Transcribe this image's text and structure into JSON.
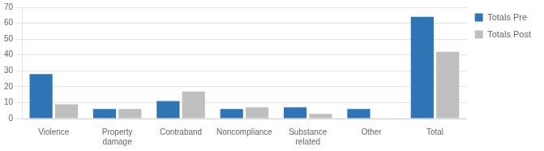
{
  "chart_data": {
    "type": "bar",
    "categories": [
      "Violence",
      "Property\ndamage",
      "Contraband",
      "Noncompliance",
      "Substance\nrelated",
      "Other",
      "Total"
    ],
    "series": [
      {
        "name": "Totals Pre",
        "color": "#2E75B6",
        "values": [
          28,
          6,
          11,
          6,
          7,
          6,
          64
        ]
      },
      {
        "name": "Totals Post",
        "color": "#BFBFBF",
        "values": [
          9,
          6,
          17,
          7,
          3,
          0,
          42
        ]
      }
    ],
    "ylim": [
      0,
      70
    ],
    "yticks": [
      0,
      10,
      20,
      30,
      40,
      50,
      60,
      70
    ],
    "grid": true,
    "legend": "upper right"
  }
}
